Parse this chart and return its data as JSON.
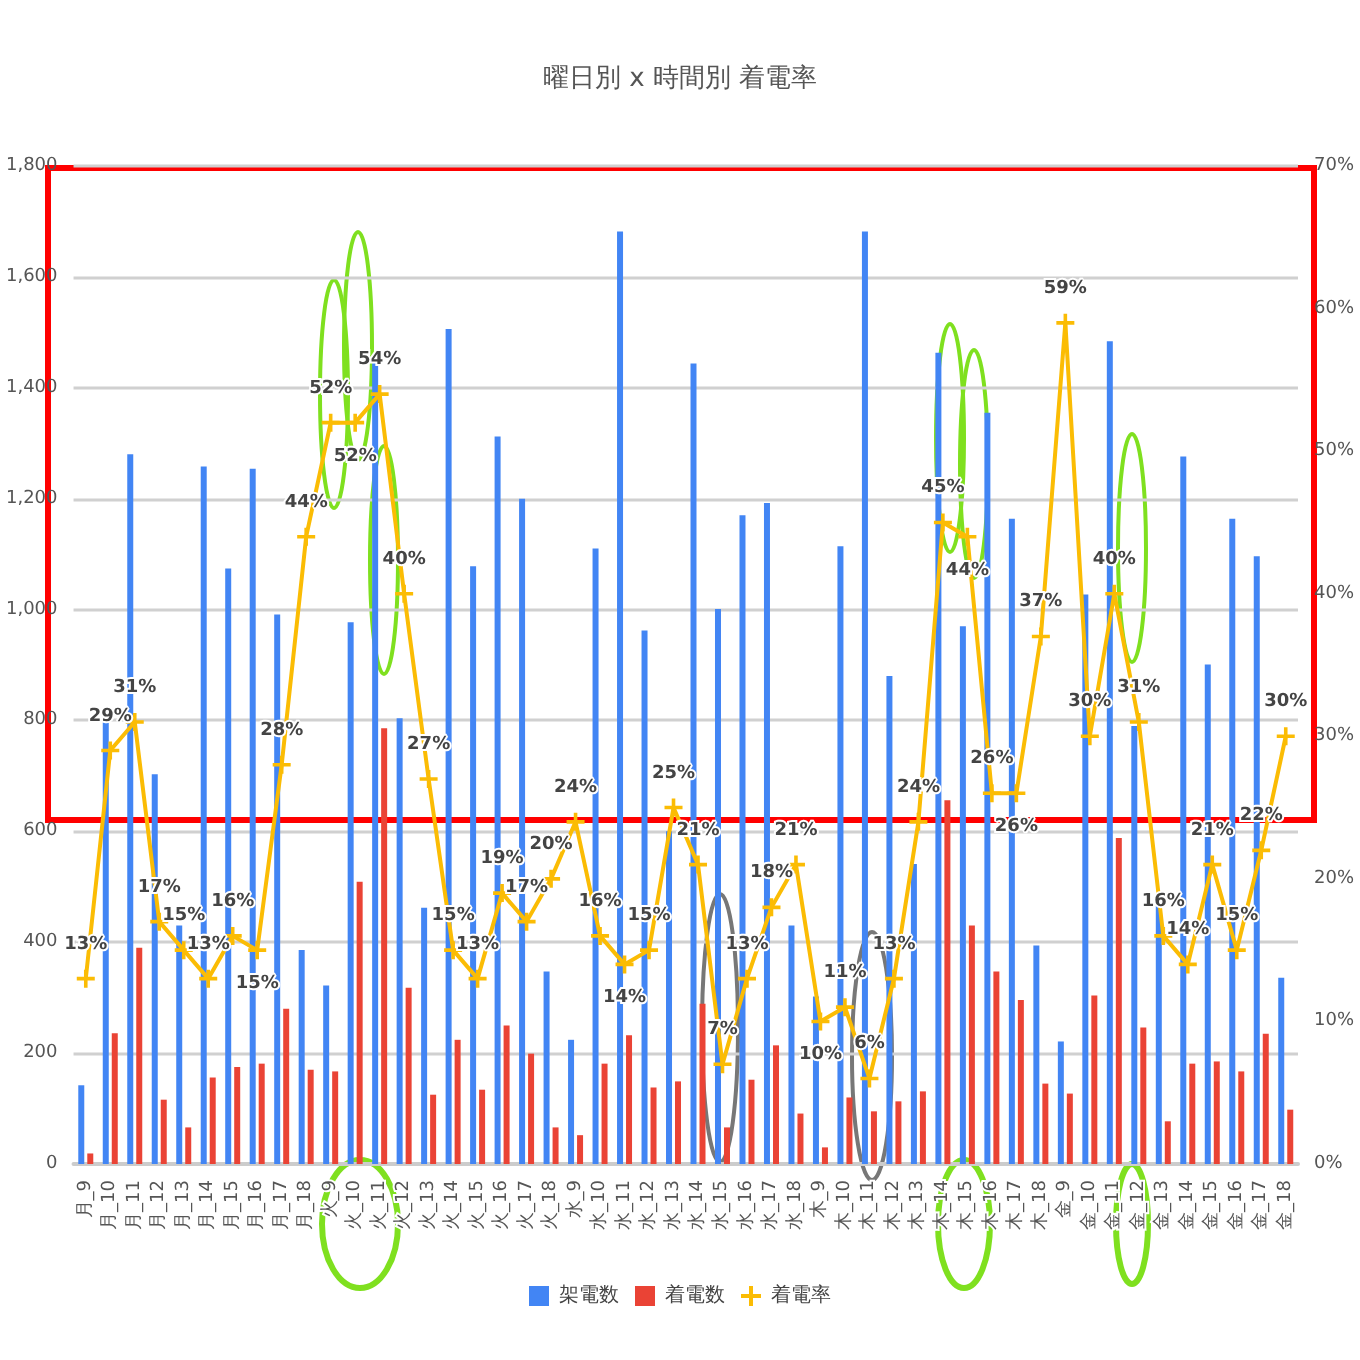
{
  "chart_data": {
    "type": "bar",
    "title": "曜日別 x 時間別 着電率",
    "categories": [
      "月_9",
      "月_10",
      "月_11",
      "月_12",
      "月_13",
      "月_14",
      "月_15",
      "月_16",
      "月_17",
      "月_18",
      "火_9",
      "火_10",
      "火_11",
      "火_12",
      "火_13",
      "火_14",
      "火_15",
      "火_16",
      "火_17",
      "火_18",
      "水_9",
      "水_10",
      "水_11",
      "水_12",
      "水_13",
      "水_14",
      "水_15",
      "水_16",
      "水_17",
      "水_18",
      "木_9",
      "木_10",
      "木_11",
      "木_12",
      "木_13",
      "木_14",
      "木_15",
      "木_16",
      "木_17",
      "木_18",
      "金_9",
      "金_10",
      "金_11",
      "金_12",
      "金_13",
      "金_14",
      "金_15",
      "金_16",
      "金_17",
      "金_18"
    ],
    "series": [
      {
        "name": "架電数",
        "color": "#4285f4",
        "values": [
          142,
          800,
          1280,
          703,
          430,
          1258,
          1074,
          1254,
          991,
          386,
          322,
          977,
          1456,
          804,
          462,
          1506,
          1078,
          1312,
          1200,
          347,
          224,
          1110,
          1682,
          962,
          600,
          1444,
          1001,
          1170,
          1192,
          430,
          302,
          1114,
          1682,
          880,
          541,
          1463,
          970,
          1355,
          1164,
          394,
          221,
          1027,
          1484,
          790,
          473,
          1276,
          901,
          1164,
          1096,
          336
        ]
      },
      {
        "name": "着電数",
        "color": "#ea4335",
        "values": [
          19,
          236,
          390,
          116,
          66,
          156,
          175,
          181,
          280,
          170,
          167,
          509,
          786,
          318,
          125,
          224,
          134,
          250,
          199,
          66,
          52,
          181,
          232,
          138,
          149,
          289,
          66,
          152,
          214,
          91,
          30,
          120,
          95,
          113,
          131,
          656,
          430,
          347,
          296,
          145,
          127,
          304,
          588,
          246,
          77,
          181,
          185,
          167,
          235,
          98
        ]
      },
      {
        "name": "着電率",
        "type": "line",
        "axis": "y2",
        "color": "#fbbc04",
        "marker": "cross",
        "values": [
          13,
          29,
          31,
          17,
          15,
          13,
          16,
          15,
          28,
          44,
          52,
          52,
          54,
          40,
          27,
          15,
          13,
          19,
          17,
          20,
          24,
          16,
          14,
          15,
          25,
          21,
          7,
          13,
          18,
          21,
          10,
          11,
          6,
          13,
          24,
          45,
          44,
          26,
          26,
          37,
          59,
          30,
          40,
          31,
          16,
          14,
          21,
          15,
          22,
          30
        ],
        "value_labels": [
          "13%",
          "29%",
          "31%",
          "17%",
          "15%",
          "13%",
          "16%",
          "15%",
          "28%",
          "44%",
          "52%",
          "52%",
          "54%",
          "40%",
          "27%",
          "15%",
          "13%",
          "19%",
          "17%",
          "20%",
          "24%",
          "16%",
          "14%",
          "15%",
          "25%",
          "21%",
          "7%",
          "13%",
          "18%",
          "21%",
          "10%",
          "11%",
          "6%",
          "13%",
          "24%",
          "45%",
          "44%",
          "26%",
          "26%",
          "37%",
          "59%",
          "30%",
          "40%",
          "31%",
          "16%",
          "14%",
          "21%",
          "15%",
          "22%",
          "30%"
        ]
      }
    ],
    "ylim": [
      0,
      1800
    ],
    "yticks": [
      0,
      200,
      400,
      600,
      800,
      {
        "value": 1000,
        "label": "1,000"
      },
      {
        "value": 1200,
        "label": "1,200"
      },
      {
        "value": 1400,
        "label": "1,400"
      },
      {
        "value": 1600,
        "label": "1,600"
      },
      {
        "value": 1800,
        "label": "1,800"
      }
    ],
    "y2lim": [
      0,
      70
    ],
    "y2ticks": [
      {
        "value": 0,
        "label": "0%"
      },
      {
        "value": 10,
        "label": "10%"
      },
      {
        "value": 20,
        "label": "20%"
      },
      {
        "value": 30,
        "label": "30%"
      },
      {
        "value": 40,
        "label": "40%"
      },
      {
        "value": 50,
        "label": "50%"
      },
      {
        "value": 60,
        "label": "60%"
      },
      {
        "value": 70,
        "label": "70%"
      }
    ],
    "grid": "y",
    "legend": "bottom"
  }
}
